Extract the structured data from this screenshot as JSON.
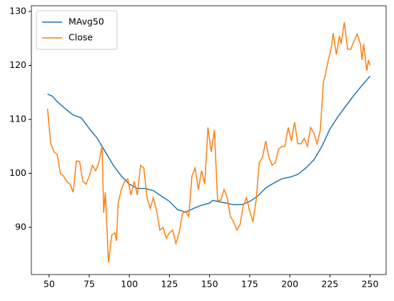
{
  "chart_data": {
    "type": "line",
    "xlim": [
      38.95,
      260.05
    ],
    "ylim": [
      81.26,
      131.06
    ],
    "xticks": [
      50,
      75,
      100,
      125,
      150,
      175,
      200,
      225,
      250
    ],
    "yticks": [
      90,
      100,
      110,
      120,
      130
    ],
    "legend": "upper left",
    "series": [
      {
        "name": "MAvg50",
        "color": "#1f77b4",
        "x": [
          49,
          52,
          55,
          60,
          65,
          70,
          75,
          80,
          85,
          90,
          95,
          100,
          105,
          110,
          115,
          120,
          125,
          130,
          135,
          140,
          145,
          150,
          152,
          155,
          160,
          165,
          170,
          175,
          180,
          185,
          190,
          195,
          200,
          205,
          210,
          215,
          220,
          225,
          230,
          235,
          240,
          245,
          250
        ],
        "values": [
          114.7,
          114.3,
          113.3,
          112,
          110.8,
          110.3,
          108.3,
          106.5,
          104,
          101.5,
          99.5,
          98,
          97.2,
          97.2,
          96.8,
          95.8,
          94.8,
          93.3,
          92.8,
          93.5,
          94.1,
          94.5,
          95,
          94.8,
          94.5,
          94.2,
          94.2,
          94.8,
          95.8,
          97.3,
          98.2,
          99,
          99.3,
          99.8,
          101,
          102.5,
          105,
          108.2,
          110.5,
          112.5,
          114.5,
          116.3,
          118
        ]
      },
      {
        "name": "Close",
        "color": "#ff7f0e",
        "x": [
          49,
          51,
          53,
          55,
          57,
          59,
          61,
          63,
          65,
          67,
          69,
          71,
          73,
          75,
          77,
          79,
          81,
          83,
          84,
          85,
          86,
          87,
          89,
          91,
          92,
          93,
          95,
          97,
          99,
          101,
          103,
          105,
          107,
          109,
          111,
          113,
          115,
          117,
          119,
          121,
          123,
          125,
          127,
          129,
          131,
          133,
          135,
          137,
          139,
          141,
          143,
          145,
          147,
          149,
          151,
          153,
          155,
          157,
          159,
          161,
          163,
          165,
          167,
          169,
          171,
          173,
          175,
          177,
          179,
          181,
          183,
          185,
          187,
          189,
          191,
          193,
          195,
          197,
          199,
          201,
          203,
          205,
          207,
          209,
          211,
          213,
          215,
          217,
          219,
          221,
          222,
          224,
          226,
          227,
          229,
          231,
          232,
          234,
          236,
          238,
          240,
          242,
          244,
          245,
          246,
          248,
          249,
          250
        ],
        "values": [
          112,
          105.5,
          104,
          103.5,
          100,
          99.5,
          98.5,
          98,
          96.5,
          102.3,
          102.2,
          98.5,
          98,
          99.5,
          101.5,
          100.5,
          102,
          105,
          92.7,
          96.5,
          90,
          83.5,
          88.5,
          89,
          87.5,
          94.5,
          97,
          98.5,
          99,
          96,
          98.5,
          96,
          101.5,
          101,
          95.5,
          93.5,
          95.5,
          93,
          89.5,
          90,
          88,
          89,
          89.5,
          87,
          89,
          92.5,
          93,
          92,
          99.5,
          101,
          97,
          100.5,
          98,
          108.5,
          104,
          108,
          95,
          95,
          97,
          95.5,
          92,
          91,
          89.5,
          90.5,
          94,
          95.5,
          93,
          91,
          95,
          102,
          103,
          106,
          103,
          101.5,
          102,
          104.5,
          105,
          105,
          108.5,
          106,
          109.5,
          105.5,
          105.5,
          106.5,
          105,
          108.5,
          107.5,
          105.5,
          108,
          117,
          118,
          121,
          123.5,
          126,
          122,
          125.5,
          124,
          128,
          123,
          123,
          124.5,
          125.8,
          124,
          121,
          124,
          119,
          121,
          120
        ]
      }
    ]
  }
}
